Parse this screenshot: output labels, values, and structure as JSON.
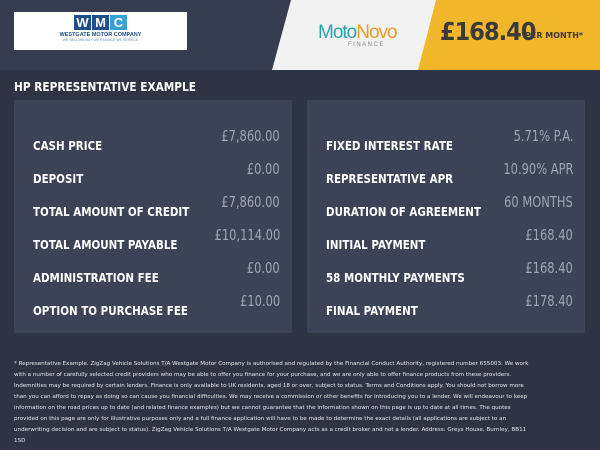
{
  "header": {
    "dealer": {
      "letters": [
        "W",
        "M",
        "C"
      ],
      "name": "WESTGATE MOTOR COMPANY",
      "tagline": "WE SELL WE BUY WE FINANCE WE SERVICE"
    },
    "finance_logo": {
      "part1": "Moto",
      "part2": "Novo",
      "sub": "FINANCE"
    },
    "price": "£168.40",
    "price_suffix": "PER MONTH*"
  },
  "title": "HP REPRESENTATIVE EXAMPLE",
  "left_rows": [
    {
      "label": "CASH PRICE",
      "value": "£7,860.00"
    },
    {
      "label": "DEPOSIT",
      "value": "£0.00"
    },
    {
      "label": "TOTAL AMOUNT OF CREDIT",
      "value": "£7,860.00"
    },
    {
      "label": "TOTAL AMOUNT PAYABLE",
      "value": "£10,114.00"
    },
    {
      "label": "ADMINISTRATION FEE",
      "value": "£0.00"
    },
    {
      "label": "OPTION TO PURCHASE FEE",
      "value": "£10.00"
    }
  ],
  "right_rows": [
    {
      "label": "FIXED INTEREST RATE",
      "value": "5.71% P.A."
    },
    {
      "label": "REPRESENTATIVE APR",
      "value": "10.90% APR"
    },
    {
      "label": "DURATION OF AGREEMENT",
      "value": "60 MONTHS"
    },
    {
      "label": "INITIAL PAYMENT",
      "value": "£168.40"
    },
    {
      "label": "58 MONTHLY PAYMENTS",
      "value": "£168.40"
    },
    {
      "label": "FINAL PAYMENT",
      "value": "£178.40"
    }
  ],
  "disclaimer": "* Representative Example. ZigZag Vehicle Solutions T/A Westgate Motor Company is authorised and regulated by the Financial Conduct Authority, registered number 655003. We work with a number of carefully selected credit providers who may be able to offer you finance for your purchase, and we are only able to offer finance products from these providers. Indemnities may be required by certain lenders. Finance is only available to UK residents, aged 18 or over, subject to status. Terms and Conditions apply. You should not borrow more than you can afford to repay as doing so can cause you financial difficulties. We may receive a commission or other benefits for introducing you to a lender. We will endeavour to keep information on the road prices up to date (and related finance examples) but we cannot guarantee that the information shown on this page is up to date at all times. The quotes provided on this page are only for illustrative purposes only and a full finance application will have to be made to determine the exact details (all applications are subject to an underwriting decision and are subject to status). ZigZag Vehicle Solutions T/A Westgate Motor Company acts as a credit broker and not a lender. Address: Greys House, Burnley, BB11 1SD",
  "colors": {
    "header": "#373d50",
    "background": "#2f3444",
    "panel": "#3d4357",
    "accent": "#f2b62b"
  }
}
